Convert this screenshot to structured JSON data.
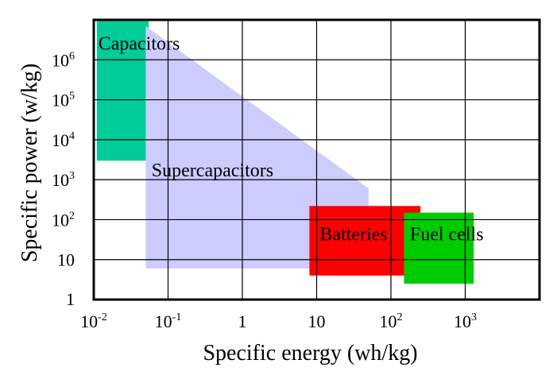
{
  "chart_data": {
    "type": "area",
    "xlabel": "Specific energy (wh/kg)",
    "ylabel": "Specific power (w/kg)",
    "x_scale": "log",
    "y_scale": "log",
    "xlim": [
      0.01,
      10000
    ],
    "ylim": [
      1,
      10000000
    ],
    "grid": true,
    "x_ticks": [
      {
        "value": 0.01,
        "base": "10",
        "exp": "-2"
      },
      {
        "value": 0.1,
        "base": "10",
        "exp": "-1"
      },
      {
        "value": 1,
        "base": "1",
        "exp": ""
      },
      {
        "value": 10,
        "base": "10",
        "exp": ""
      },
      {
        "value": 100,
        "base": "10",
        "exp": "2"
      },
      {
        "value": 1000,
        "base": "10",
        "exp": "3"
      }
    ],
    "y_ticks": [
      {
        "value": 1,
        "base": "1",
        "exp": ""
      },
      {
        "value": 10,
        "base": "10",
        "exp": ""
      },
      {
        "value": 100,
        "base": "10",
        "exp": "2"
      },
      {
        "value": 1000,
        "base": "10",
        "exp": "3"
      },
      {
        "value": 10000,
        "base": "10",
        "exp": "4"
      },
      {
        "value": 100000,
        "base": "10",
        "exp": "5"
      },
      {
        "value": 1000000,
        "base": "10",
        "exp": "6"
      }
    ],
    "regions": [
      {
        "label": "Capacitors",
        "color": "#00cc99",
        "points": [
          [
            0.011,
            10000000
          ],
          [
            0.055,
            10000000
          ],
          [
            0.055,
            3000
          ],
          [
            0.011,
            3000
          ]
        ]
      },
      {
        "label": "Supercapacitors",
        "color": "#ccccff",
        "points": [
          [
            0.05,
            7000000
          ],
          [
            50,
            600
          ],
          [
            50,
            6
          ],
          [
            0.05,
            6
          ]
        ]
      },
      {
        "label": "Batteries",
        "color": "#ff0000",
        "points": [
          [
            8,
            220
          ],
          [
            250,
            220
          ],
          [
            250,
            4
          ],
          [
            8,
            4
          ]
        ]
      },
      {
        "label": "Fuel cells",
        "color": "#00cc00",
        "points": [
          [
            150,
            150
          ],
          [
            1300,
            150
          ],
          [
            1300,
            2.5
          ],
          [
            150,
            2.5
          ]
        ]
      }
    ]
  }
}
